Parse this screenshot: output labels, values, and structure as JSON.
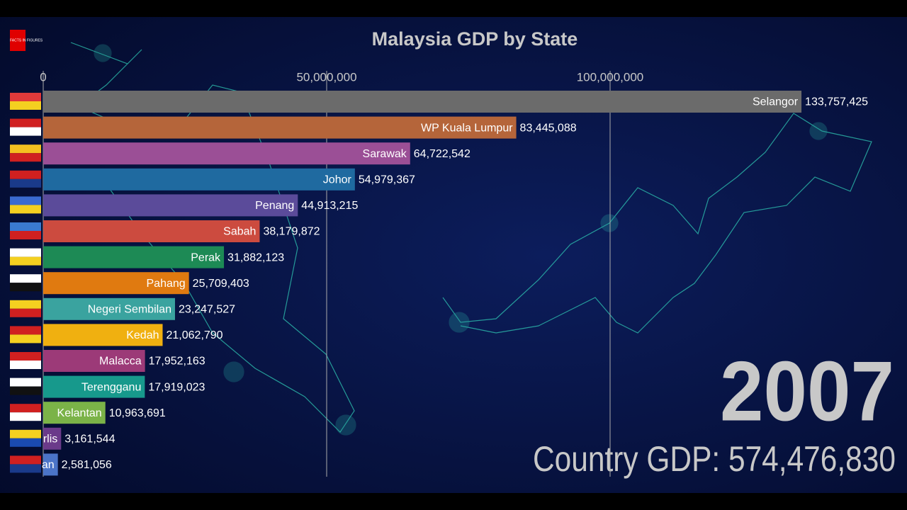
{
  "chart_data": {
    "type": "bar",
    "orientation": "horizontal",
    "title": "Malaysia GDP by State",
    "logo": "FACTS IN FIGURES",
    "year": "2007",
    "total_label": "Country GDP: 574,476,830",
    "categories": [
      "Selangor",
      "WP Kuala Lumpur",
      "Sarawak",
      "Johor",
      "Penang",
      "Sabah",
      "Perak",
      "Pahang",
      "Negeri Sembilan",
      "Kedah",
      "Malacca",
      "Terengganu",
      "Kelantan",
      "rlis",
      "an"
    ],
    "values": [
      133757425,
      83445088,
      64722542,
      54979367,
      44913215,
      38179872,
      31882123,
      25709403,
      23247527,
      21062790,
      17952163,
      17919023,
      10963691,
      3161544,
      2581056
    ],
    "value_labels": [
      "133,757,425",
      "83,445,088",
      "64,722,542",
      "54,979,367",
      "44,913,215",
      "38,179,872",
      "31,882,123",
      "25,709,403",
      "23,247,527",
      "21,062,790",
      "17,952,163",
      "17,919,023",
      "10,963,691",
      "3,161,544",
      "2,581,056"
    ],
    "colors": [
      "#6b6b6b",
      "#b5653a",
      "#9b4f96",
      "#1f6aa0",
      "#5b4b9a",
      "#cc4b3f",
      "#1d8a55",
      "#e07a10",
      "#3aa39f",
      "#f0b010",
      "#9c3a78",
      "#17998c",
      "#7bb348",
      "#6b3a8a",
      "#4b74c8"
    ],
    "xlim": [
      0,
      150000000
    ],
    "xticks": [
      0,
      {
        "value": 50000000,
        "label": "50,000,000"
      },
      {
        "value": 100000000,
        "label": "100,000,000"
      }
    ],
    "grid": true
  }
}
